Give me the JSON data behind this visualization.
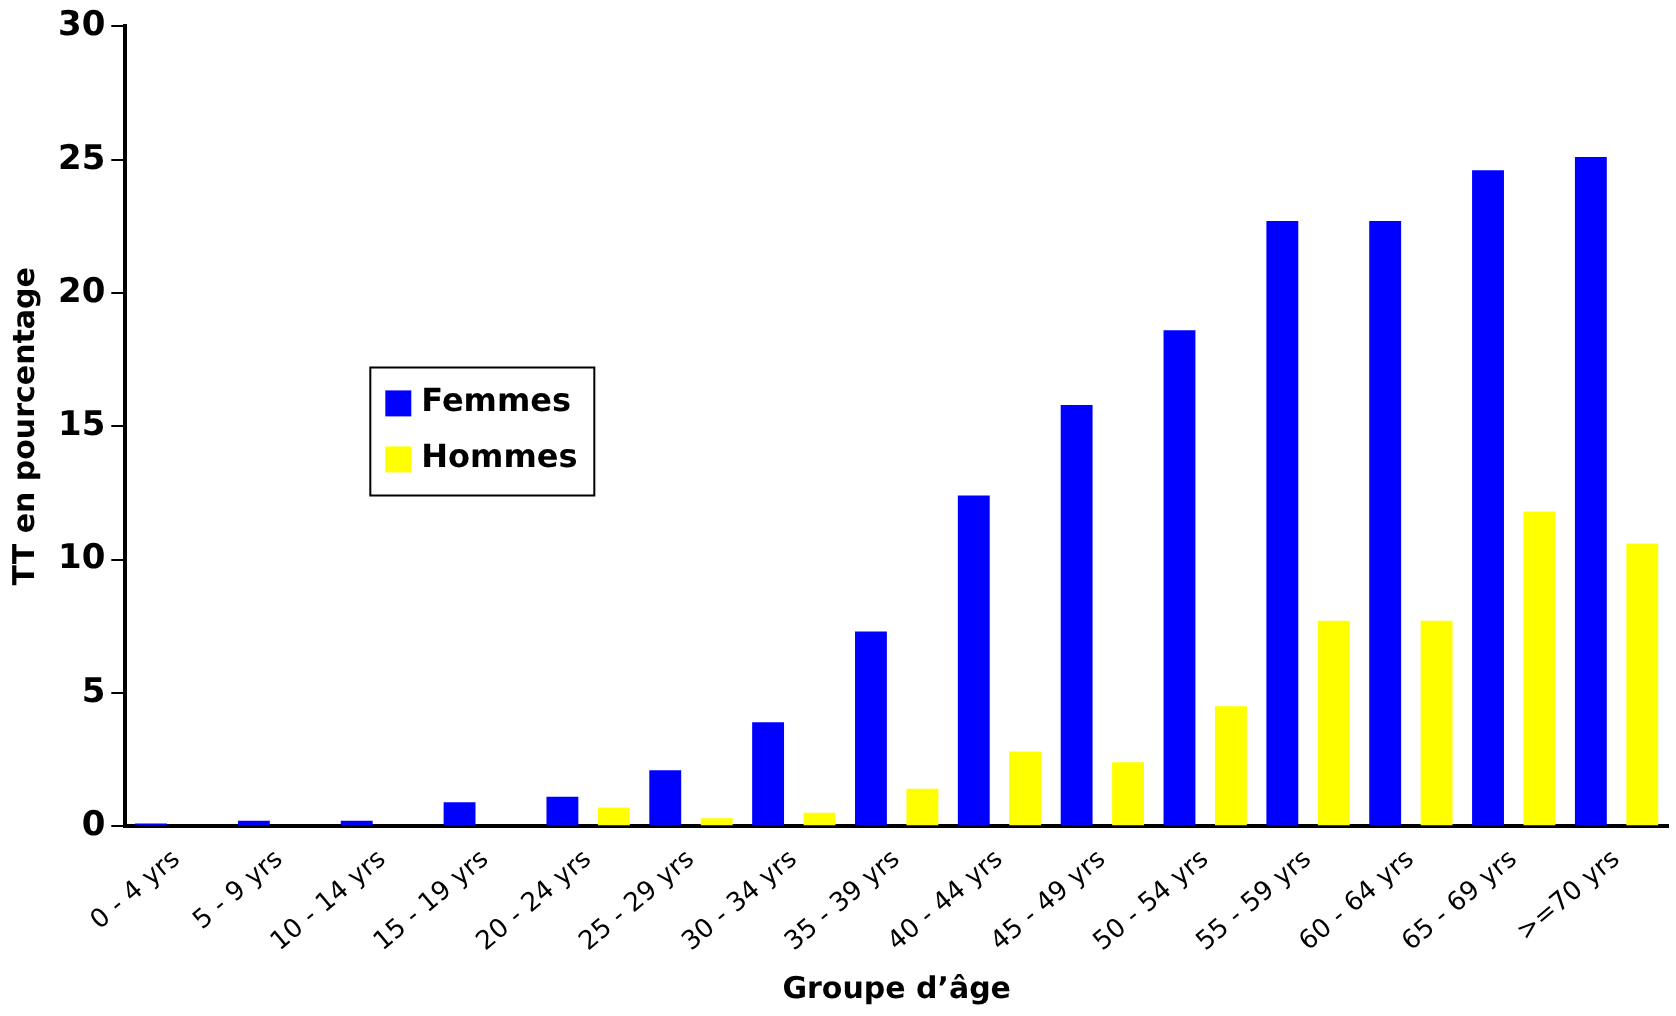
{
  "chart_data": {
    "type": "bar",
    "xlabel": "Groupe d’âge",
    "ylabel": "TT en pourcentage",
    "categories": [
      "0 - 4 yrs",
      "5 - 9 yrs",
      "10 - 14 yrs",
      "15 - 19 yrs",
      "20 - 24 yrs",
      "25 - 29 yrs",
      "30 - 34 yrs",
      "35 - 39 yrs",
      "40 - 44 yrs",
      "45 - 49 yrs",
      "50 - 54 yrs",
      "55 - 59 yrs",
      "60 - 64 yrs",
      "65 - 69 yrs",
      ">=70 yrs"
    ],
    "series": [
      {
        "name": "Femmes",
        "color": "#0000ff",
        "values": [
          0.1,
          0.2,
          0.2,
          0.9,
          1.1,
          2.1,
          3.9,
          7.3,
          12.4,
          15.8,
          18.6,
          22.7,
          22.7,
          24.6,
          25.1
        ]
      },
      {
        "name": "Hommes",
        "color": "#ffff00",
        "values": [
          null,
          null,
          0,
          0,
          0.7,
          0.3,
          0.5,
          1.4,
          2.8,
          2.4,
          4.5,
          7.7,
          7.7,
          11.8,
          10.6
        ]
      }
    ],
    "ylim": [
      0,
      30
    ],
    "yticks": [
      0,
      5,
      10,
      15,
      20,
      25,
      30
    ],
    "grid": false,
    "legend": "left"
  }
}
